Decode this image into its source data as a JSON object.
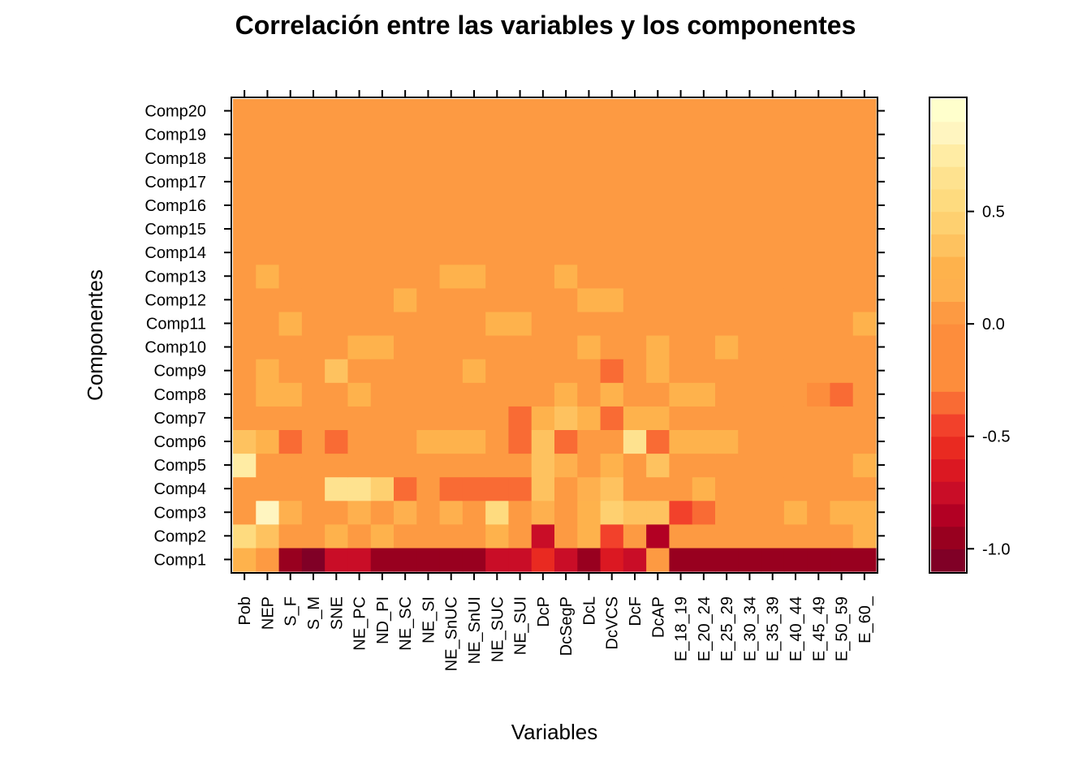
{
  "chart_data": {
    "type": "heatmap",
    "title": "Correlación entre las variables y los componentes",
    "xlabel": "Variables",
    "ylabel": "Componentes",
    "x": [
      "Pob",
      "NEP",
      "S_F",
      "S_M",
      "SNE",
      "NE_PC",
      "ND_PI",
      "NE_SC",
      "NE_SI",
      "NE_SnUC",
      "NE_SnUI",
      "NE_SUC",
      "NE_SUI",
      "DcP",
      "DcSegP",
      "DcL",
      "DcVCS",
      "DcF",
      "DcAP",
      "E_18_19",
      "E_20_24",
      "E_25_29",
      "E_30_34",
      "E_35_39",
      "E_40_44",
      "E_45_49",
      "E_50_59",
      "E_60_"
    ],
    "y": [
      "Comp1",
      "Comp2",
      "Comp3",
      "Comp4",
      "Comp5",
      "Comp6",
      "Comp7",
      "Comp8",
      "Comp9",
      "Comp10",
      "Comp11",
      "Comp12",
      "Comp13",
      "Comp14",
      "Comp15",
      "Comp16",
      "Comp17",
      "Comp18",
      "Comp19",
      "Comp20"
    ],
    "values": [
      [
        0.2,
        0.0,
        -1.0,
        -1.05,
        -0.75,
        -0.8,
        -0.95,
        -0.95,
        -0.95,
        -0.95,
        -0.95,
        -0.8,
        -0.8,
        -0.55,
        -0.8,
        -1.0,
        -0.7,
        -0.75,
        0.0,
        -0.95,
        -0.95,
        -0.95,
        -0.95,
        -0.95,
        -0.95,
        -0.95,
        -0.95,
        -0.95
      ],
      [
        0.55,
        0.3,
        0.05,
        0.05,
        0.25,
        0.05,
        0.2,
        0.05,
        0.05,
        0.05,
        0.05,
        0.2,
        0.05,
        -0.8,
        0.05,
        0.25,
        -0.45,
        0.0,
        -0.85,
        0.05,
        0.05,
        0.05,
        0.05,
        0.05,
        0.05,
        0.05,
        0.05,
        0.2
      ],
      [
        0.05,
        0.8,
        0.1,
        0.0,
        0.0,
        0.1,
        0.0,
        0.1,
        0.0,
        0.1,
        0.0,
        0.5,
        0.05,
        0.1,
        0.05,
        0.2,
        0.45,
        0.35,
        0.35,
        -0.45,
        -0.4,
        0.0,
        0.0,
        0.05,
        0.25,
        0.05,
        0.25,
        0.25
      ],
      [
        0.0,
        0.05,
        0.0,
        0.05,
        0.6,
        0.6,
        0.45,
        -0.4,
        0.05,
        -0.35,
        -0.35,
        -0.35,
        -0.4,
        0.3,
        0.05,
        0.1,
        0.3,
        0.05,
        0.0,
        0.05,
        0.25,
        0.05,
        0.05,
        0.05,
        0.05,
        0.0,
        0.05,
        0.0
      ],
      [
        0.75,
        0.05,
        0.05,
        0.05,
        0.05,
        0.05,
        0.05,
        0.05,
        0.05,
        0.05,
        0.05,
        0.0,
        0.05,
        0.3,
        0.15,
        0.05,
        0.2,
        0.0,
        0.3,
        0.05,
        0.05,
        0.0,
        0.05,
        0.05,
        0.05,
        0.05,
        0.05,
        0.25
      ],
      [
        0.3,
        0.25,
        -0.4,
        0.05,
        -0.4,
        0.05,
        0.0,
        0.05,
        0.2,
        0.2,
        0.2,
        0.05,
        -0.4,
        0.3,
        -0.4,
        0.05,
        0.0,
        0.6,
        -0.4,
        0.2,
        0.2,
        0.2,
        0.05,
        0.05,
        0.0,
        0.05,
        0.05,
        0.05
      ],
      [
        0.05,
        0.05,
        0.05,
        0.05,
        0.05,
        0.0,
        0.05,
        0.05,
        0.0,
        0.0,
        0.0,
        0.05,
        -0.4,
        0.25,
        0.3,
        0.25,
        -0.4,
        0.25,
        0.25,
        0.05,
        0.05,
        0.05,
        0.05,
        0.05,
        0.05,
        0.05,
        0.05,
        0.05
      ],
      [
        0.05,
        0.2,
        0.2,
        0.05,
        0.0,
        0.2,
        0.05,
        0.05,
        0.05,
        0.05,
        0.05,
        0.05,
        0.0,
        0.0,
        0.25,
        0.0,
        0.2,
        0.0,
        0.0,
        0.2,
        0.2,
        0.05,
        0.05,
        0.0,
        0.05,
        -0.05,
        -0.4,
        0.0
      ],
      [
        0.05,
        0.2,
        0.05,
        0.05,
        0.3,
        0.05,
        0.05,
        0.05,
        0.05,
        0.05,
        0.25,
        0.05,
        0.05,
        0.05,
        0.0,
        0.05,
        -0.4,
        0.0,
        0.2,
        0.05,
        0.05,
        0.05,
        0.05,
        0.05,
        0.05,
        0.05,
        0.0,
        0.0
      ],
      [
        0.05,
        0.05,
        0.0,
        0.05,
        0.0,
        0.2,
        0.2,
        0.05,
        0.05,
        0.0,
        0.0,
        0.05,
        0.05,
        0.0,
        0.0,
        0.2,
        0.0,
        0.0,
        0.2,
        0.05,
        0.05,
        0.25,
        0.05,
        0.05,
        0.05,
        0.05,
        0.05,
        0.05
      ],
      [
        0.05,
        0.05,
        0.2,
        0.05,
        0.0,
        0.05,
        0.05,
        0.0,
        0.05,
        0.0,
        0.05,
        0.2,
        0.2,
        0.05,
        0.05,
        0.05,
        0.05,
        0.0,
        0.0,
        0.05,
        0.05,
        0.05,
        0.05,
        0.05,
        0.05,
        0.0,
        0.05,
        0.2
      ],
      [
        0.05,
        0.05,
        0.05,
        0.05,
        0.05,
        0.0,
        0.05,
        0.2,
        0.05,
        0.0,
        0.05,
        0.0,
        0.05,
        0.05,
        0.05,
        0.2,
        0.2,
        0.05,
        0.05,
        0.05,
        0.05,
        0.05,
        0.05,
        0.05,
        0.05,
        0.0,
        0.05,
        0.05
      ],
      [
        0.05,
        0.2,
        0.0,
        0.05,
        0.05,
        0.05,
        0.05,
        0.05,
        0.05,
        0.2,
        0.2,
        0.0,
        0.05,
        0.05,
        0.2,
        0.05,
        0.05,
        0.0,
        0.05,
        0.05,
        0.05,
        0.05,
        0.05,
        0.05,
        0.05,
        0.0,
        0.05,
        0.05
      ],
      [
        0.05,
        0.05,
        0.05,
        0.05,
        0.05,
        0.0,
        0.05,
        0.05,
        0.05,
        0.0,
        0.05,
        0.0,
        0.05,
        0.05,
        0.05,
        0.05,
        0.05,
        0.05,
        0.05,
        0.05,
        0.05,
        0.05,
        0.05,
        0.05,
        0.05,
        0.0,
        0.05,
        0.05
      ],
      [
        0.05,
        0.05,
        0.05,
        0.05,
        0.05,
        0.05,
        0.05,
        0.05,
        0.05,
        0.05,
        0.05,
        0.05,
        0.05,
        0.05,
        0.05,
        0.0,
        0.05,
        0.05,
        0.05,
        0.05,
        0.05,
        0.05,
        0.05,
        0.05,
        0.05,
        0.05,
        0.05,
        0.05
      ],
      [
        0.05,
        0.05,
        0.05,
        0.05,
        0.05,
        0.05,
        0.05,
        0.05,
        0.05,
        0.05,
        0.05,
        0.05,
        0.05,
        0.05,
        0.05,
        0.05,
        0.05,
        0.05,
        0.05,
        0.05,
        0.05,
        0.05,
        0.05,
        0.05,
        0.05,
        0.0,
        0.05,
        0.05
      ],
      [
        0.05,
        0.05,
        0.05,
        0.05,
        0.05,
        0.05,
        0.05,
        0.05,
        0.05,
        0.05,
        0.05,
        0.05,
        0.05,
        0.05,
        0.05,
        0.05,
        0.05,
        0.05,
        0.05,
        0.05,
        0.05,
        0.05,
        0.05,
        0.05,
        0.05,
        0.05,
        0.05,
        0.05
      ],
      [
        0.05,
        0.05,
        0.05,
        0.05,
        0.05,
        0.05,
        0.05,
        0.05,
        0.05,
        0.05,
        0.05,
        0.05,
        0.05,
        0.05,
        0.05,
        0.05,
        0.05,
        0.05,
        0.05,
        0.05,
        0.05,
        0.05,
        0.05,
        0.05,
        0.05,
        0.05,
        0.05,
        0.05
      ],
      [
        0.05,
        0.05,
        0.05,
        0.05,
        0.05,
        0.05,
        0.05,
        0.05,
        0.05,
        0.05,
        0.05,
        0.05,
        0.05,
        0.05,
        0.05,
        0.05,
        0.05,
        0.05,
        0.05,
        0.05,
        0.05,
        0.05,
        0.05,
        0.05,
        0.05,
        0.05,
        0.05,
        0.05
      ],
      [
        0.05,
        0.05,
        0.05,
        0.05,
        0.05,
        0.05,
        0.05,
        0.05,
        0.05,
        0.05,
        0.05,
        0.05,
        0.05,
        0.05,
        0.05,
        0.05,
        0.05,
        0.05,
        0.05,
        0.05,
        0.05,
        0.05,
        0.05,
        0.05,
        0.05,
        0.05,
        0.05,
        0.05
      ]
    ],
    "colorbar": {
      "breaks": [
        -1.1,
        -1.0,
        -0.9,
        -0.8,
        -0.7,
        -0.6,
        -0.5,
        -0.4,
        -0.3,
        -0.2,
        -0.1,
        0.0,
        0.1,
        0.2,
        0.3,
        0.4,
        0.5,
        0.6,
        0.7,
        0.8,
        0.9,
        1.0
      ],
      "colors": [
        "#800026",
        "#98001f",
        "#b20023",
        "#c90d27",
        "#db1822",
        "#e92a21",
        "#f2412b",
        "#f96b34",
        "#fd8d3c",
        "#fd8d3c",
        "#fd8d3c",
        "#fd9a42",
        "#feb04e",
        "#feb24c",
        "#fec25f",
        "#fed070",
        "#fedb7f",
        "#fee28f",
        "#ffeca4",
        "#fff5c0",
        "#ffffcc"
      ],
      "ticks": [
        -1.0,
        -0.5,
        0.0,
        0.5
      ],
      "tick_labels": [
        "-1.0",
        "-0.5",
        "0.0",
        "0.5"
      ]
    }
  }
}
